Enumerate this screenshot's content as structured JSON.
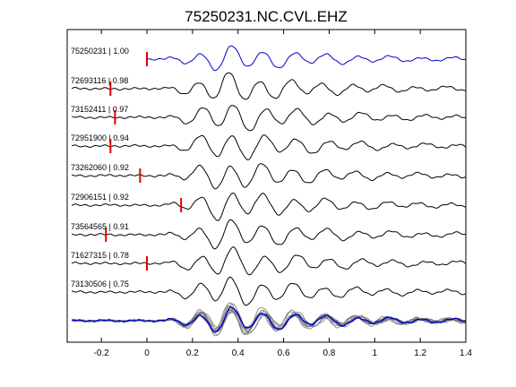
{
  "chart_data": {
    "type": "line",
    "title": "75250231.NC.CVL.EHZ",
    "xlabel": "",
    "ylabel": "",
    "xlim": [
      -0.35,
      1.4
    ],
    "x_ticks": [
      -0.2,
      0,
      0.2,
      0.4,
      0.6,
      0.8,
      1.0,
      1.2,
      1.4
    ],
    "x_tick_labels": [
      "-0.2",
      "0",
      "0.2",
      "0.4",
      "0.6",
      "0.8",
      "1",
      "1.2",
      "1.4"
    ],
    "grid": false,
    "colors": {
      "reference": "#0000cc",
      "trace": "#000000",
      "pick": "#e00000",
      "stack_gray": "#777777"
    },
    "series": [
      {
        "name": "75250231 | 1.00",
        "pick_time": 0.0,
        "color": "blue"
      },
      {
        "name": "72693116 | 0.98",
        "pick_time": -0.16,
        "color": "black"
      },
      {
        "name": "73152411 | 0.97",
        "pick_time": -0.14,
        "color": "black"
      },
      {
        "name": "72951900 | 0.94",
        "pick_time": -0.16,
        "color": "black"
      },
      {
        "name": "73262060 | 0.92",
        "pick_time": -0.03,
        "color": "black"
      },
      {
        "name": "72906151 | 0.92",
        "pick_time": 0.15,
        "color": "black"
      },
      {
        "name": "73564565 | 0.91",
        "pick_time": -0.18,
        "color": "black"
      },
      {
        "name": "71627315 | 0.78",
        "pick_time": 0.0,
        "color": "black"
      },
      {
        "name": "73130506 | 0.75",
        "pick_time": null,
        "color": "black"
      }
    ],
    "stack": {
      "description_series_count": 9
    }
  }
}
